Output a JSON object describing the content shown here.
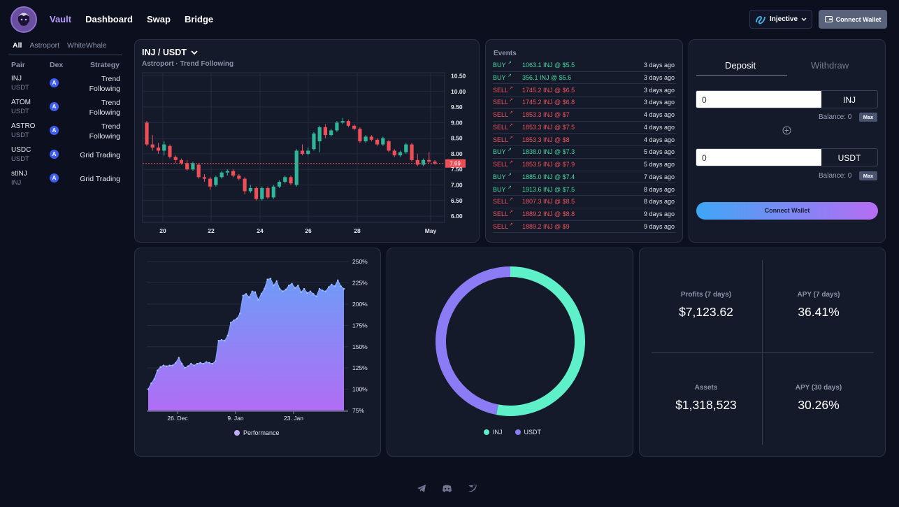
{
  "nav": {
    "items": [
      "Vault",
      "Dashboard",
      "Swap",
      "Bridge"
    ],
    "active": "Vault"
  },
  "header": {
    "network_label": "Injective",
    "connect_label": "Connect Wallet"
  },
  "sidebar": {
    "tabs": [
      "All",
      "Astroport",
      "WhiteWhale"
    ],
    "col_pair": "Pair",
    "col_dex": "Dex",
    "col_strategy": "Strategy",
    "rows": [
      {
        "base": "INJ",
        "quote": "USDT",
        "strategy": "Trend Following"
      },
      {
        "base": "ATOM",
        "quote": "USDT",
        "strategy": "Trend Following"
      },
      {
        "base": "ASTRO",
        "quote": "USDT",
        "strategy": "Trend Following"
      },
      {
        "base": "USDC",
        "quote": "USDT",
        "strategy": "Grid Trading"
      },
      {
        "base": "stINJ",
        "quote": "INJ",
        "strategy": "Grid Trading"
      }
    ]
  },
  "price_chart": {
    "pair": "INJ / USDT",
    "subtitle": "Astroport · Trend Following",
    "y_ticks": [
      "10.50",
      "10.00",
      "9.50",
      "9.00",
      "8.50",
      "8.00",
      "7.50",
      "7.00",
      "6.50",
      "6.00"
    ],
    "x_ticks": [
      "20",
      "22",
      "24",
      "26",
      "28",
      "May"
    ],
    "current_price": "7.69"
  },
  "events": {
    "title": "Events",
    "rows": [
      {
        "side": "BUY",
        "desc": "1063.1 INJ @ $5.5",
        "time": "3 days ago"
      },
      {
        "side": "BUY",
        "desc": "356.1 INJ @ $5.6",
        "time": "3 days ago"
      },
      {
        "side": "SELL",
        "desc": "1745.2 INJ @ $6.5",
        "time": "3 days ago"
      },
      {
        "side": "SELL",
        "desc": "1745.2 INJ @ $6.8",
        "time": "3 days ago"
      },
      {
        "side": "SELL",
        "desc": "1853.3 INJ @ $7",
        "time": "4 days ago"
      },
      {
        "side": "SELL",
        "desc": "1853.3 INJ @ $7.5",
        "time": "4 days ago"
      },
      {
        "side": "SELL",
        "desc": "1853.3 INJ @ $8",
        "time": "4 days ago"
      },
      {
        "side": "BUY",
        "desc": "1838.0 INJ @ $7.3",
        "time": "5 days ago"
      },
      {
        "side": "SELL",
        "desc": "1853.5 INJ @ $7.9",
        "time": "5 days ago"
      },
      {
        "side": "BUY",
        "desc": "1885.0 INJ @ $7.4",
        "time": "7 days ago"
      },
      {
        "side": "BUY",
        "desc": "1913.6 INJ @ $7.5",
        "time": "8 days ago"
      },
      {
        "side": "SELL",
        "desc": "1807.3 INJ @ $8.5",
        "time": "8 days ago"
      },
      {
        "side": "SELL",
        "desc": "1889.2 INJ @ $8.8",
        "time": "9 days ago"
      },
      {
        "side": "SELL",
        "desc": "1889.2 INJ @ $9",
        "time": "9 days ago"
      }
    ]
  },
  "trade": {
    "tab_deposit": "Deposit",
    "tab_withdraw": "Withdraw",
    "input1": {
      "value": "0",
      "unit": "INJ",
      "balance": "Balance: 0"
    },
    "input2": {
      "value": "0",
      "unit": "USDT",
      "balance": "Balance: 0"
    },
    "max_label": "Max",
    "connect_label": "Connect Wallet"
  },
  "performance": {
    "y_ticks": [
      "250%",
      "225%",
      "200%",
      "175%",
      "150%",
      "125%",
      "100%",
      "75%"
    ],
    "x_ticks": [
      "26. Dec",
      "9. Jan",
      "23. Jan"
    ],
    "legend": "Performance"
  },
  "donut": {
    "legend": [
      "INJ",
      "USDT"
    ],
    "colors": {
      "INJ": "#5ef0c8",
      "USDT": "#8b7cf6"
    }
  },
  "stats": {
    "profits_label": "Profits (7 days)",
    "profits_value": "$7,123.62",
    "apy7_label": "APY (7 days)",
    "apy7_value": "36.41%",
    "assets_label": "Assets",
    "assets_value": "$1,318,523",
    "apy30_label": "APY (30 days)",
    "apy30_value": "30.26%"
  },
  "chart_data": [
    {
      "type": "candlestick",
      "title": "INJ / USDT",
      "x_ticks": [
        "20",
        "22",
        "24",
        "26",
        "28",
        "May"
      ],
      "ylim": [
        5.8,
        10.6
      ],
      "series": [
        {
          "values": [
            [
              9.0,
              9.05,
              8.25,
              8.3
            ],
            [
              8.3,
              8.6,
              8.1,
              8.2
            ],
            [
              8.2,
              8.35,
              8.0,
              8.1
            ],
            [
              8.1,
              8.4,
              7.95,
              8.3
            ],
            [
              8.25,
              8.3,
              7.85,
              7.9
            ],
            [
              7.9,
              7.95,
              7.7,
              7.8
            ],
            [
              7.8,
              7.85,
              7.65,
              7.7
            ],
            [
              7.7,
              7.8,
              7.45,
              7.5
            ],
            [
              7.5,
              7.75,
              7.45,
              7.7
            ],
            [
              7.65,
              7.7,
              7.2,
              7.25
            ],
            [
              7.25,
              7.35,
              7.1,
              7.2
            ],
            [
              7.2,
              7.25,
              6.85,
              6.95
            ],
            [
              7.0,
              7.3,
              6.95,
              7.25
            ],
            [
              7.25,
              7.45,
              7.2,
              7.4
            ],
            [
              7.4,
              7.5,
              7.3,
              7.45
            ],
            [
              7.45,
              7.5,
              7.25,
              7.3
            ],
            [
              7.3,
              7.35,
              7.15,
              7.2
            ],
            [
              7.2,
              7.25,
              6.7,
              6.8
            ],
            [
              6.8,
              7.0,
              6.75,
              6.9
            ],
            [
              6.9,
              6.95,
              6.5,
              6.55
            ],
            [
              6.55,
              6.95,
              6.5,
              6.9
            ],
            [
              6.9,
              6.95,
              6.55,
              6.6
            ],
            [
              6.6,
              7.0,
              6.55,
              6.95
            ],
            [
              6.95,
              7.15,
              6.9,
              7.1
            ],
            [
              7.1,
              7.3,
              7.05,
              7.25
            ],
            [
              7.25,
              7.3,
              7.0,
              7.05
            ],
            [
              7.0,
              8.15,
              6.95,
              8.1
            ],
            [
              8.1,
              8.3,
              7.95,
              8.0
            ],
            [
              8.0,
              8.2,
              7.95,
              8.1
            ],
            [
              8.15,
              8.7,
              8.1,
              8.65
            ],
            [
              8.4,
              8.9,
              8.05,
              8.85
            ],
            [
              8.85,
              8.95,
              8.5,
              8.6
            ],
            [
              8.6,
              8.8,
              8.55,
              8.75
            ],
            [
              8.75,
              9.05,
              8.7,
              9.0
            ],
            [
              9.0,
              9.15,
              8.95,
              9.05
            ],
            [
              9.05,
              9.1,
              8.85,
              8.9
            ],
            [
              8.9,
              8.95,
              8.75,
              8.8
            ],
            [
              8.8,
              8.85,
              8.35,
              8.4
            ],
            [
              8.4,
              8.6,
              8.35,
              8.55
            ],
            [
              8.55,
              8.6,
              8.4,
              8.45
            ],
            [
              8.45,
              8.5,
              8.25,
              8.3
            ],
            [
              8.3,
              8.55,
              8.25,
              8.5
            ],
            [
              8.4,
              8.45,
              8.05,
              8.1
            ],
            [
              8.1,
              8.15,
              7.9,
              7.95
            ],
            [
              7.95,
              8.1,
              7.9,
              8.05
            ],
            [
              8.05,
              8.35,
              8.0,
              8.3
            ],
            [
              8.3,
              8.35,
              7.75,
              7.8
            ],
            [
              7.8,
              8.0,
              7.6,
              7.65
            ],
            [
              7.65,
              7.85,
              7.6,
              7.8
            ],
            [
              7.8,
              8.05,
              7.7,
              7.75
            ],
            [
              7.75,
              7.8,
              7.65,
              7.69
            ]
          ]
        }
      ]
    },
    {
      "type": "area",
      "title": "",
      "x_ticks": [
        "26. Dec",
        "9. Jan",
        "23. Jan"
      ],
      "ylim": [
        75,
        255
      ],
      "series": [
        {
          "name": "Performance",
          "values": [
            100,
            107,
            112,
            122,
            126,
            128,
            127,
            128,
            128,
            131,
            137,
            130,
            125,
            127,
            130,
            128,
            130,
            131,
            130,
            132,
            131,
            130,
            133,
            157,
            158,
            157,
            163,
            178,
            181,
            183,
            189,
            210,
            212,
            208,
            215,
            214,
            205,
            212,
            218,
            229,
            230,
            222,
            227,
            218,
            215,
            217,
            222,
            224,
            219,
            222,
            214,
            218,
            213,
            215,
            212,
            209,
            218,
            216,
            215,
            220,
            223,
            221,
            228,
            221,
            218
          ]
        }
      ]
    },
    {
      "type": "pie",
      "categories": [
        "INJ",
        "USDT"
      ],
      "values": [
        53,
        47
      ],
      "title": ""
    }
  ]
}
